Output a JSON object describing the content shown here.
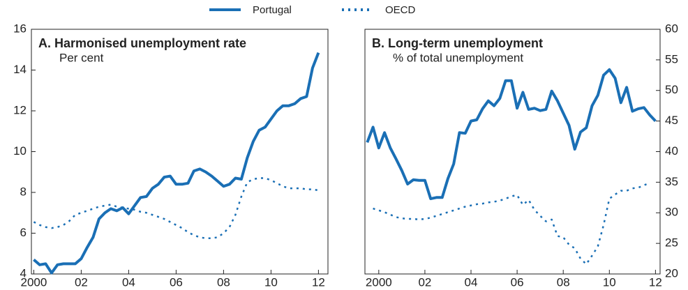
{
  "chart_data": [
    {
      "type": "line",
      "title": "A. Harmonised unemployment rate",
      "subtitle": "Per cent",
      "x": [
        2000,
        2000.25,
        2000.5,
        2000.75,
        2001,
        2001.25,
        2001.5,
        2001.75,
        2002,
        2002.25,
        2002.5,
        2002.75,
        2003,
        2003.25,
        2003.5,
        2003.75,
        2004,
        2004.25,
        2004.5,
        2004.75,
        2005,
        2005.25,
        2005.5,
        2005.75,
        2006,
        2006.25,
        2006.5,
        2006.75,
        2007,
        2007.25,
        2007.5,
        2007.75,
        2008,
        2008.25,
        2008.5,
        2008.75,
        2009,
        2009.25,
        2009.5,
        2009.75,
        2010,
        2010.25,
        2010.5,
        2010.75,
        2011,
        2011.25,
        2011.5,
        2011.75,
        2012
      ],
      "series": [
        {
          "name": "Portugal",
          "color": "#1a6fb5",
          "style": "solid",
          "values": [
            4.7,
            4.45,
            4.5,
            4.05,
            4.45,
            4.5,
            4.5,
            4.5,
            4.75,
            5.3,
            5.8,
            6.7,
            7.0,
            7.2,
            7.1,
            7.25,
            6.95,
            7.35,
            7.75,
            7.8,
            8.2,
            8.4,
            8.75,
            8.8,
            8.4,
            8.4,
            8.45,
            9.05,
            9.15,
            9.0,
            8.8,
            8.55,
            8.3,
            8.4,
            8.7,
            8.65,
            9.7,
            10.5,
            11.05,
            11.2,
            11.6,
            12.0,
            12.25,
            12.25,
            12.35,
            12.6,
            12.7,
            14.1,
            14.85
          ]
        },
        {
          "name": "OECD",
          "color": "#1a6fb5",
          "style": "dotted",
          "values": [
            6.55,
            6.4,
            6.3,
            6.25,
            6.3,
            6.4,
            6.6,
            6.9,
            7.0,
            7.1,
            7.2,
            7.3,
            7.35,
            7.4,
            7.3,
            7.25,
            7.2,
            7.15,
            7.05,
            7.0,
            6.9,
            6.8,
            6.7,
            6.55,
            6.4,
            6.25,
            6.05,
            5.9,
            5.8,
            5.75,
            5.75,
            5.8,
            6.0,
            6.3,
            6.9,
            7.8,
            8.5,
            8.65,
            8.7,
            8.7,
            8.6,
            8.45,
            8.3,
            8.2,
            8.2,
            8.2,
            8.15,
            8.15,
            8.1
          ]
        }
      ],
      "xlim": [
        1999.9,
        2012.4
      ],
      "xticks": [
        {
          "value": 2000,
          "label": "2000"
        },
        {
          "value": 2002,
          "label": "02"
        },
        {
          "value": 2004,
          "label": "04"
        },
        {
          "value": 2006,
          "label": "06"
        },
        {
          "value": 2008,
          "label": "08"
        },
        {
          "value": 2010,
          "label": "10"
        },
        {
          "value": 2012,
          "label": "12"
        }
      ],
      "ylim": [
        4,
        16
      ],
      "yticks": [
        4,
        6,
        8,
        10,
        12,
        14,
        16
      ],
      "y_axis_side": "left"
    },
    {
      "type": "line",
      "title": "B. Long-term unemployment",
      "subtitle": "% of total unemployment",
      "series": [
        {
          "color": "#1a6fb5",
          "style": "solid",
          "x": [
            1999.5,
            1999.75,
            2000,
            2000.25,
            2000.5,
            2000.75,
            2001,
            2001.25,
            2001.5,
            2001.75,
            2002,
            2002.25,
            2002.5,
            2002.75,
            2003,
            2003.25,
            2003.5,
            2003.75,
            2004,
            2004.25,
            2004.5,
            2004.75,
            2005,
            2005.25,
            2005.5,
            2005.75,
            2006,
            2006.25,
            2006.5,
            2006.75,
            2007,
            2007.25,
            2007.5,
            2007.75,
            2008,
            2008.25,
            2008.5,
            2008.75,
            2009,
            2009.25,
            2009.5,
            2009.75,
            2010,
            2010.25,
            2010.5,
            2010.75,
            2011,
            2011.25,
            2011.5,
            2011.75,
            2012
          ],
          "values": [
            41.5,
            44.0,
            40.6,
            43.1,
            40.6,
            38.8,
            36.9,
            34.7,
            35.4,
            35.3,
            35.3,
            32.3,
            32.5,
            32.5,
            35.6,
            38.0,
            43.1,
            43.0,
            45.0,
            45.2,
            47.0,
            48.3,
            47.5,
            48.7,
            51.6,
            51.6,
            47.1,
            49.7,
            46.9,
            47.1,
            46.7,
            46.9,
            49.9,
            48.3,
            46.3,
            44.3,
            40.4,
            43.2,
            43.9,
            47.5,
            49.2,
            52.5,
            53.4,
            52.0,
            48.0,
            50.5,
            46.6,
            47.0,
            47.2,
            46.0,
            45.0
          ]
        },
        {
          "color": "#1a6fb5",
          "style": "dotted",
          "x": [
            1999.75,
            2000,
            2000.25,
            2000.5,
            2000.75,
            2001,
            2001.25,
            2001.5,
            2001.75,
            2002,
            2002.25,
            2002.5,
            2002.75,
            2003,
            2003.25,
            2003.5,
            2003.75,
            2004,
            2004.25,
            2004.5,
            2004.75,
            2005,
            2005.25,
            2005.5,
            2005.75,
            2006,
            2006.25,
            2006.5,
            2006.75,
            2007,
            2007.25,
            2007.5,
            2007.75,
            2008,
            2008.25,
            2008.5,
            2008.75,
            2009,
            2009.25,
            2009.5,
            2009.75,
            2010,
            2010.25,
            2010.5,
            2010.75,
            2011,
            2011.25,
            2011.5,
            2011.75
          ],
          "values": [
            30.7,
            30.4,
            30.1,
            29.7,
            29.3,
            29.1,
            29.0,
            29.0,
            28.9,
            29.0,
            29.2,
            29.5,
            29.8,
            30.1,
            30.4,
            30.7,
            31.0,
            31.2,
            31.4,
            31.5,
            31.7,
            31.8,
            32.0,
            32.3,
            32.7,
            32.9,
            31.3,
            32.1,
            30.5,
            29.5,
            28.6,
            28.9,
            26.2,
            26.0,
            24.8,
            24.2,
            22.5,
            21.6,
            23.0,
            24.5,
            28.0,
            32.3,
            33.0,
            33.6,
            33.6,
            34.0,
            34.1,
            34.5,
            34.9
          ]
        }
      ],
      "xlim": [
        1999.4,
        2012.2
      ],
      "xticks": [
        {
          "value": 2000,
          "label": "2000"
        },
        {
          "value": 2002,
          "label": "02"
        },
        {
          "value": 2004,
          "label": "04"
        },
        {
          "value": 2006,
          "label": "06"
        },
        {
          "value": 2008,
          "label": "08"
        },
        {
          "value": 2010,
          "label": "10"
        },
        {
          "value": 2012,
          "label": "12"
        }
      ],
      "ylim": [
        20,
        60
      ],
      "yticks": [
        20,
        25,
        30,
        35,
        40,
        45,
        50,
        55,
        60
      ],
      "y_axis_side": "right"
    }
  ]
}
